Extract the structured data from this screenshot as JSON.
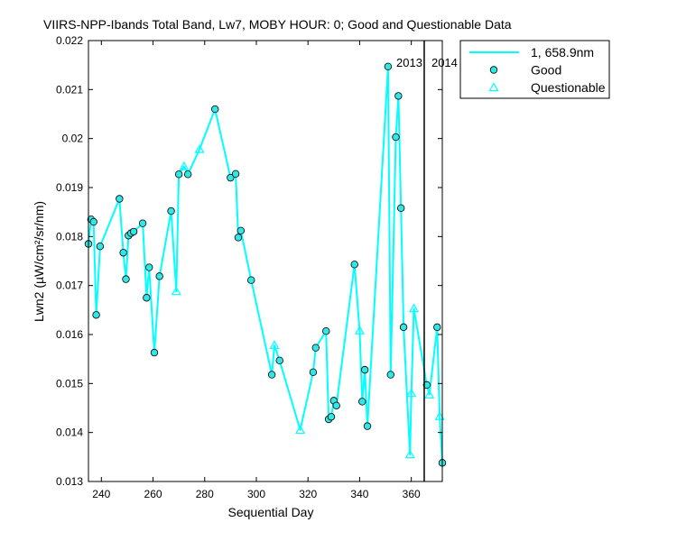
{
  "chart_data": {
    "type": "line",
    "title": "VIIRS-NPP-Ibands Total Band, Lw7, MOBY HOUR: 0;  Good and Questionable Data",
    "xlabel": "Sequential Day",
    "ylabel": "Lwn2 (µW/cm²/sr/nm)",
    "xlim": [
      235,
      372
    ],
    "ylim": [
      0.013,
      0.022
    ],
    "x_ticks": [
      240,
      260,
      280,
      300,
      320,
      340,
      360
    ],
    "y_ticks": [
      0.013,
      0.014,
      0.015,
      0.016,
      0.017,
      0.018,
      0.019,
      0.02,
      0.021,
      0.022
    ],
    "x_tick_labels": [
      "240",
      "260",
      "280",
      "300",
      "320",
      "340",
      "360"
    ],
    "y_tick_labels": [
      "0.013",
      "0.014",
      "0.015",
      "0.016",
      "0.017",
      "0.018",
      "0.019",
      "0.02",
      "0.021",
      "0.022"
    ],
    "grid": false,
    "legend_position": "outside top-right",
    "colors": {
      "series": "#00FFFF",
      "marker_fill": "#33E6E6",
      "marker_edge": "#000000",
      "axis": "#000000"
    },
    "year_markers": [
      {
        "x": 365,
        "label_left": "2013",
        "label_right": "2014"
      }
    ],
    "series": [
      {
        "name": "1, 658.9nm",
        "style": "line",
        "points": [
          [
            235,
            0.01785
          ],
          [
            236,
            0.01835
          ],
          [
            237,
            0.0183
          ],
          [
            238,
            0.0164
          ],
          [
            239.5,
            0.0178
          ],
          [
            247,
            0.01877
          ],
          [
            248.5,
            0.01767
          ],
          [
            249.5,
            0.01713
          ],
          [
            250.5,
            0.01802
          ],
          [
            251.5,
            0.01807
          ],
          [
            252.5,
            0.0181
          ],
          [
            256,
            0.01827
          ],
          [
            257.5,
            0.01675
          ],
          [
            258.5,
            0.01737
          ],
          [
            260.5,
            0.01563
          ],
          [
            262.5,
            0.01719
          ],
          [
            267,
            0.01852
          ],
          [
            269,
            0.01688
          ],
          [
            270,
            0.01927
          ],
          [
            272,
            0.01943
          ],
          [
            273.5,
            0.01927
          ],
          [
            278,
            0.01978
          ],
          [
            284,
            0.0206
          ],
          [
            290,
            0.0192
          ],
          [
            292,
            0.01928
          ],
          [
            293,
            0.01798
          ],
          [
            294,
            0.01812
          ],
          [
            298,
            0.01711
          ],
          [
            306,
            0.01518
          ],
          [
            307,
            0.01578
          ],
          [
            309,
            0.01547
          ],
          [
            317,
            0.01405
          ],
          [
            322,
            0.01523
          ],
          [
            323,
            0.01573
          ],
          [
            327,
            0.01607
          ],
          [
            328,
            0.01427
          ],
          [
            329,
            0.01432
          ],
          [
            330,
            0.01465
          ],
          [
            331,
            0.01455
          ],
          [
            338,
            0.01743
          ],
          [
            340,
            0.01608
          ],
          [
            341,
            0.01463
          ],
          [
            342,
            0.01528
          ],
          [
            343,
            0.01413
          ],
          [
            351,
            0.02147
          ],
          [
            352,
            0.01518
          ],
          [
            354,
            0.02003
          ],
          [
            355,
            0.02087
          ],
          [
            356,
            0.01858
          ],
          [
            357,
            0.01615
          ],
          [
            359.5,
            0.01355
          ],
          [
            360,
            0.0148
          ],
          [
            361,
            0.01653
          ],
          [
            366,
            0.01497
          ],
          [
            367,
            0.01477
          ],
          [
            370,
            0.01615
          ],
          [
            371,
            0.01433
          ],
          [
            372,
            0.01338
          ]
        ]
      },
      {
        "name": "Good",
        "style": "circle",
        "points": [
          [
            235,
            0.01785
          ],
          [
            236,
            0.01835
          ],
          [
            237,
            0.0183
          ],
          [
            238,
            0.0164
          ],
          [
            239.5,
            0.0178
          ],
          [
            247,
            0.01877
          ],
          [
            248.5,
            0.01767
          ],
          [
            249.5,
            0.01713
          ],
          [
            250.5,
            0.01802
          ],
          [
            251.5,
            0.01807
          ],
          [
            252.5,
            0.0181
          ],
          [
            256,
            0.01827
          ],
          [
            257.5,
            0.01675
          ],
          [
            258.5,
            0.01737
          ],
          [
            260.5,
            0.01563
          ],
          [
            262.5,
            0.01719
          ],
          [
            267,
            0.01852
          ],
          [
            270,
            0.01927
          ],
          [
            290,
            0.0192
          ],
          [
            292,
            0.01928
          ],
          [
            293,
            0.01798
          ],
          [
            294,
            0.01812
          ],
          [
            298,
            0.01711
          ],
          [
            306,
            0.01518
          ],
          [
            309,
            0.01547
          ],
          [
            322,
            0.01523
          ],
          [
            323,
            0.01573
          ],
          [
            327,
            0.01607
          ],
          [
            328,
            0.01427
          ],
          [
            329,
            0.01432
          ],
          [
            330,
            0.01465
          ],
          [
            331,
            0.01455
          ],
          [
            338,
            0.01743
          ],
          [
            341,
            0.01463
          ],
          [
            342,
            0.01528
          ],
          [
            343,
            0.01413
          ],
          [
            351,
            0.02147
          ],
          [
            352,
            0.01518
          ],
          [
            354,
            0.02003
          ],
          [
            355,
            0.02087
          ],
          [
            356,
            0.01858
          ],
          [
            357,
            0.01615
          ],
          [
            366,
            0.01497
          ],
          [
            370,
            0.01615
          ],
          [
            372,
            0.01338
          ]
        ]
      },
      {
        "name": "Questionable",
        "style": "triangle",
        "points": [
          [
            269,
            0.01688
          ],
          [
            272,
            0.01943
          ],
          [
            278,
            0.01978
          ],
          [
            307,
            0.01578
          ],
          [
            317,
            0.01405
          ],
          [
            340,
            0.01608
          ],
          [
            359.5,
            0.01355
          ],
          [
            360,
            0.0148
          ],
          [
            361,
            0.01653
          ],
          [
            367,
            0.01477
          ],
          [
            371,
            0.01433
          ]
        ]
      },
      {
        "name": "Good",
        "style": "circle-extra",
        "points": [
          [
            273.5,
            0.01927
          ],
          [
            284,
            0.0206
          ]
        ]
      }
    ]
  }
}
